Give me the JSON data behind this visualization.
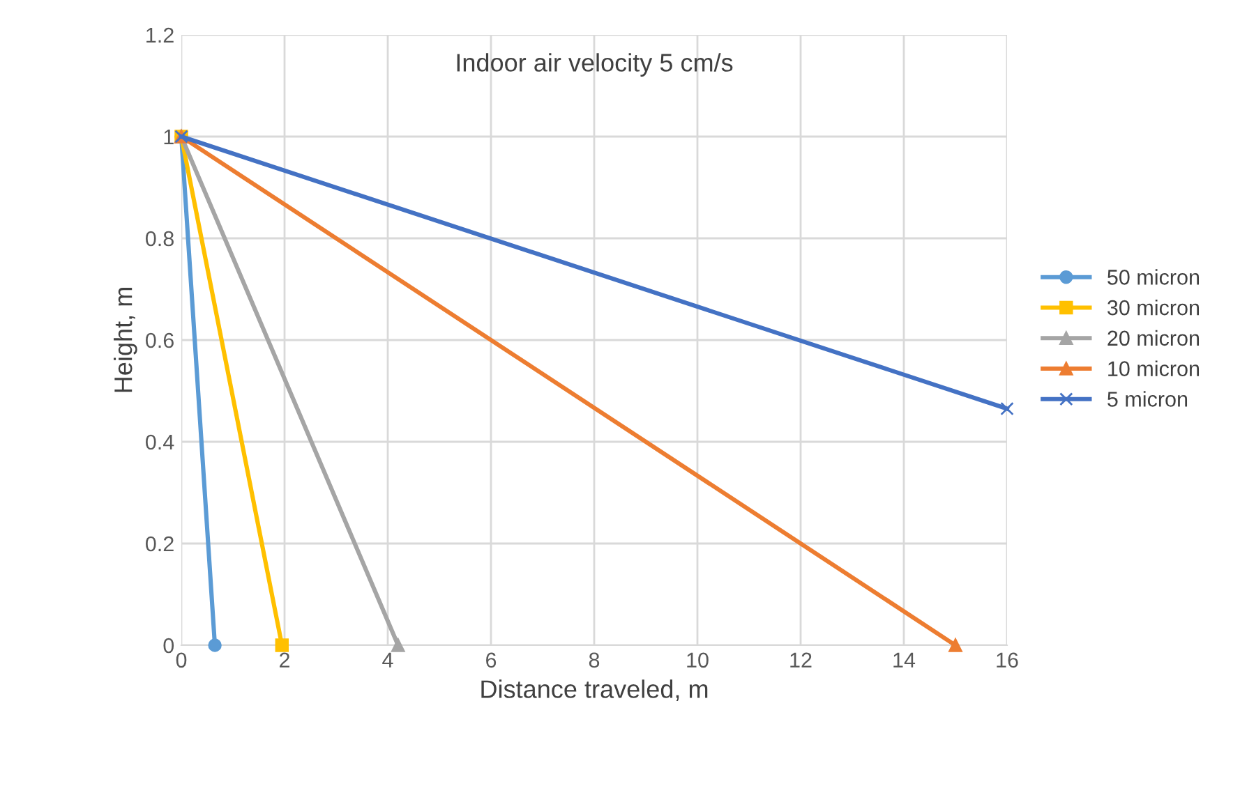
{
  "chart_data": {
    "type": "line",
    "title": "Indoor air velocity 5 cm/s",
    "xlabel": "Distance traveled, m",
    "ylabel": "Height, m",
    "xlim": [
      0,
      16
    ],
    "xticks": [
      0,
      2,
      4,
      6,
      8,
      10,
      12,
      14,
      16
    ],
    "ylim": [
      0,
      1.2
    ],
    "yticks": [
      0,
      0.2,
      0.4,
      0.6,
      0.8,
      1,
      1.2
    ],
    "grid": true,
    "legend": "right",
    "series": [
      {
        "name": "50 micron",
        "color": "#5b9bd5",
        "marker": "circle",
        "x": [
          0,
          0.65
        ],
        "values": [
          1,
          0
        ]
      },
      {
        "name": "30 micron",
        "color": "#ffc000",
        "marker": "square",
        "x": [
          0,
          1.95
        ],
        "values": [
          1,
          0
        ]
      },
      {
        "name": "20 micron",
        "color": "#a5a5a5",
        "marker": "triangle",
        "x": [
          0,
          4.2
        ],
        "values": [
          1,
          0
        ]
      },
      {
        "name": "10 micron",
        "color": "#ed7d31",
        "marker": "triangle",
        "x": [
          0,
          15
        ],
        "values": [
          1,
          0
        ]
      },
      {
        "name": "5 micron",
        "color": "#4472c4",
        "marker": "cross",
        "x": [
          0,
          16
        ],
        "values": [
          1,
          0.465
        ]
      }
    ]
  }
}
